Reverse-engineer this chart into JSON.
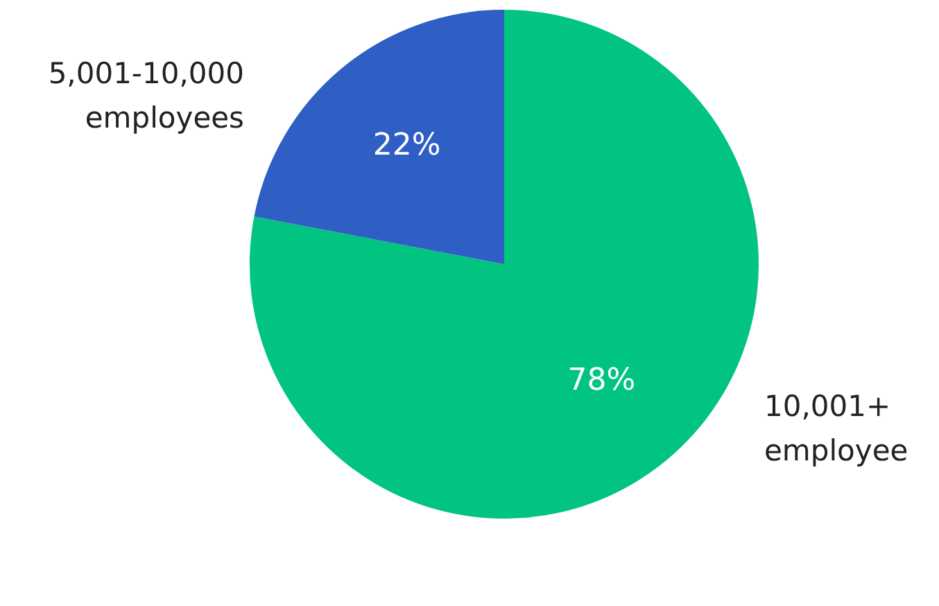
{
  "chart_data": {
    "type": "pie",
    "categories": [
      "10,001+ employee",
      "5,001-10,000 employees"
    ],
    "values": [
      78,
      22
    ],
    "colors": [
      "#00c47f",
      "#2f5ec4"
    ],
    "value_labels": [
      "78%",
      "22%"
    ],
    "legend": false
  }
}
